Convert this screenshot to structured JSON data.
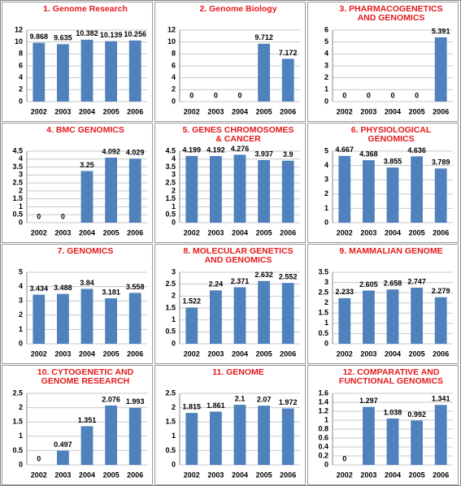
{
  "chart_data": [
    {
      "type": "bar",
      "title": "1. Genome Research",
      "categories": [
        "2002",
        "2003",
        "2004",
        "2005",
        "2006"
      ],
      "values": [
        9.868,
        9.635,
        10.382,
        10.139,
        10.256
      ],
      "color": "#4f81bd",
      "ylim": [
        0,
        12
      ],
      "yticks": [
        0,
        2,
        4,
        6,
        8,
        10,
        12
      ],
      "grid": true
    },
    {
      "type": "bar",
      "title": "2. Genome Biology",
      "categories": [
        "2002",
        "2003",
        "2004",
        "2005",
        "2006"
      ],
      "values": [
        0,
        0,
        0,
        9.712,
        7.172
      ],
      "color": "#4f81bd",
      "ylim": [
        0,
        12
      ],
      "yticks": [
        0,
        2,
        4,
        6,
        8,
        10,
        12
      ],
      "grid": true
    },
    {
      "type": "bar",
      "title": "3. PHARMACOGENETICS AND GENOMICS",
      "categories": [
        "2002",
        "2003",
        "2004",
        "2005",
        "2006"
      ],
      "values": [
        0,
        0,
        0,
        0,
        5.391
      ],
      "color": "#4f81bd",
      "ylim": [
        0,
        6
      ],
      "yticks": [
        0,
        1,
        2,
        3,
        4,
        5,
        6
      ],
      "grid": true
    },
    {
      "type": "bar",
      "title": "4. BMC GENOMICS",
      "categories": [
        "2002",
        "2003",
        "2004",
        "2005",
        "2006"
      ],
      "values": [
        0,
        0,
        3.25,
        4.092,
        4.029
      ],
      "color": "#4f81bd",
      "ylim": [
        0,
        4.5
      ],
      "yticks": [
        0,
        0.5,
        1,
        1.5,
        2,
        2.5,
        3,
        3.5,
        4,
        4.5
      ],
      "grid": true
    },
    {
      "type": "bar",
      "title": "5. GENES CHROMOSOMES & CANCER",
      "categories": [
        "2002",
        "2003",
        "2004",
        "2005",
        "2006"
      ],
      "values": [
        4.199,
        4.192,
        4.276,
        3.937,
        3.9
      ],
      "color": "#4f81bd",
      "ylim": [
        0,
        4.5
      ],
      "yticks": [
        0,
        0.5,
        1,
        1.5,
        2,
        2.5,
        3,
        3.5,
        4,
        4.5
      ],
      "grid": true
    },
    {
      "type": "bar",
      "title": "6. PHYSIOLOGICAL GENOMICS",
      "categories": [
        "2002",
        "2003",
        "2004",
        "2005",
        "2006"
      ],
      "values": [
        4.667,
        4.368,
        3.855,
        4.636,
        3.789
      ],
      "color": "#4f81bd",
      "ylim": [
        0,
        5
      ],
      "yticks": [
        0,
        1,
        2,
        3,
        4,
        5
      ],
      "grid": true
    },
    {
      "type": "bar",
      "title": "7. GENOMICS",
      "categories": [
        "2002",
        "2003",
        "2004",
        "2005",
        "2006"
      ],
      "values": [
        3.434,
        3.488,
        3.84,
        3.181,
        3.558
      ],
      "color": "#4f81bd",
      "ylim": [
        0,
        5
      ],
      "yticks": [
        0,
        1,
        2,
        3,
        4,
        5
      ],
      "grid": true
    },
    {
      "type": "bar",
      "title": "8. MOLECULAR GENETICS AND GENOMICS",
      "categories": [
        "2002",
        "2003",
        "2004",
        "2005",
        "2006"
      ],
      "values": [
        1.522,
        2.24,
        2.371,
        2.632,
        2.552
      ],
      "color": "#4f81bd",
      "ylim": [
        0,
        3
      ],
      "yticks": [
        0,
        0.5,
        1,
        1.5,
        2,
        2.5,
        3
      ],
      "grid": true
    },
    {
      "type": "bar",
      "title": "9. MAMMALIAN GENOME",
      "categories": [
        "2002",
        "2003",
        "2004",
        "2005",
        "2006"
      ],
      "values": [
        2.233,
        2.605,
        2.658,
        2.747,
        2.279
      ],
      "color": "#4f81bd",
      "ylim": [
        0,
        3.5
      ],
      "yticks": [
        0,
        0.5,
        1,
        1.5,
        2,
        2.5,
        3,
        3.5
      ],
      "grid": true
    },
    {
      "type": "bar",
      "title": "10. CYTOGENETIC AND GENOME RESEARCH",
      "categories": [
        "2002",
        "2003",
        "2004",
        "2005",
        "2006"
      ],
      "values": [
        0,
        0.497,
        1.351,
        2.076,
        1.993
      ],
      "color": "#4f81bd",
      "ylim": [
        0,
        2.5
      ],
      "yticks": [
        0,
        0.5,
        1,
        1.5,
        2,
        2.5
      ],
      "grid": true
    },
    {
      "type": "bar",
      "title": "11. GENOME",
      "categories": [
        "2002",
        "2003",
        "2004",
        "2005",
        "2006"
      ],
      "values": [
        1.815,
        1.861,
        2.1,
        2.07,
        1.972
      ],
      "color": "#4f81bd",
      "ylim": [
        0,
        2.5
      ],
      "yticks": [
        0,
        0.5,
        1,
        1.5,
        2,
        2.5
      ],
      "grid": true
    },
    {
      "type": "bar",
      "title": "12. COMPARATIVE AND FUNCTIONAL GENOMICS",
      "categories": [
        "2002",
        "2003",
        "2004",
        "2005",
        "2006"
      ],
      "values": [
        0,
        1.297,
        1.038,
        0.992,
        1.341
      ],
      "color": "#4f81bd",
      "ylim": [
        0,
        1.6
      ],
      "yticks": [
        0,
        0.2,
        0.4,
        0.6,
        0.8,
        1,
        1.2,
        1.4,
        1.6
      ],
      "grid": true
    }
  ]
}
